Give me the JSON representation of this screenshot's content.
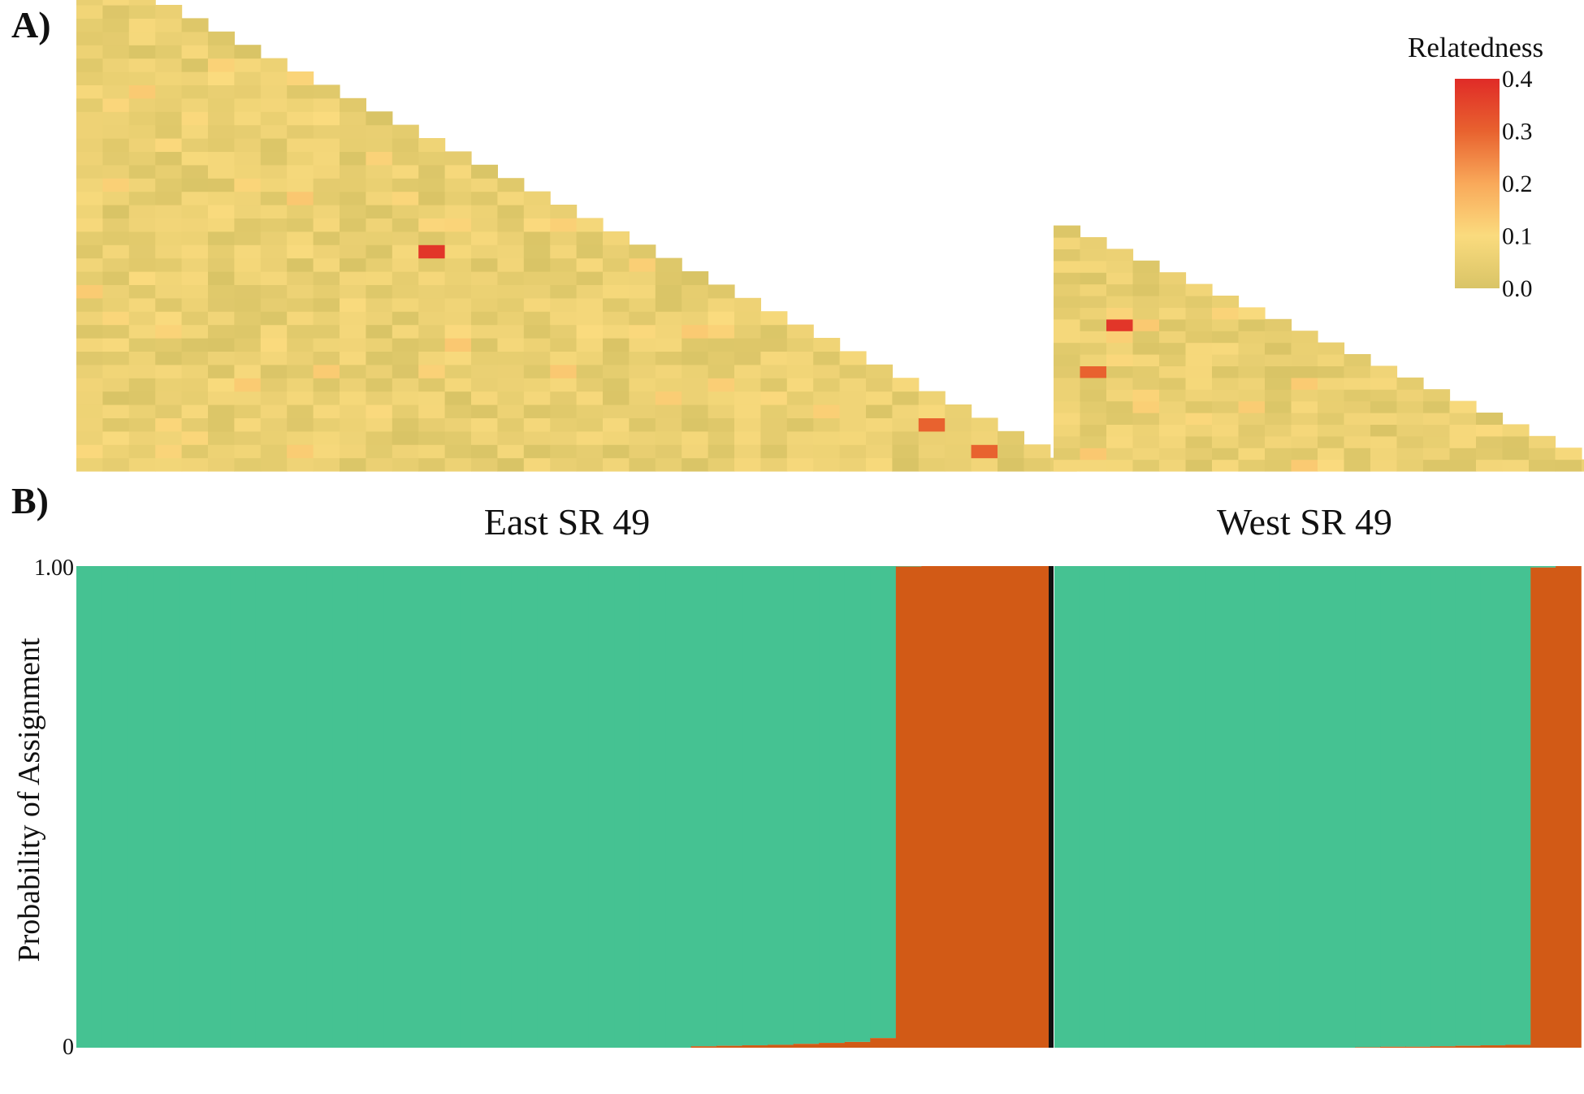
{
  "panel_labels": {
    "a": "A)",
    "b": "B)"
  },
  "chart_data": [
    {
      "type": "heatmap",
      "panel": "A)",
      "legend": {
        "title": "Relatedness",
        "ticks": [
          "0.0",
          "0.1",
          "0.2",
          "0.3",
          "0.4"
        ],
        "range": [
          0,
          0.4
        ],
        "colors": [
          "#d9c466",
          "#fadb7e",
          "#f9a95a",
          "#e8622f",
          "#e02b27"
        ]
      },
      "groups": [
        {
          "name": "East SR 49",
          "n_individuals": 38
        },
        {
          "name": "West SR 49",
          "n_individuals": 21
        }
      ],
      "grid": false,
      "highlight_pairs": [
        {
          "group": "East SR 49",
          "value": 0.38
        },
        {
          "group": "East SR 49",
          "value": 0.3
        },
        {
          "group": "East SR 49",
          "value": 0.3
        },
        {
          "group": "West SR 49",
          "value": 0.38
        },
        {
          "group": "West SR 49",
          "value": 0.3
        }
      ]
    },
    {
      "type": "bar",
      "stacked": true,
      "panel": "B)",
      "ylabel": "Probability of Assignment",
      "yticks": [
        "0",
        "1.00"
      ],
      "ylim": [
        0,
        1
      ],
      "groups": [
        "East SR 49",
        "West SR 49"
      ],
      "series_colors": {
        "cluster_1": "#45c292",
        "cluster_2": "#d25a16"
      },
      "east": {
        "n_individuals": 38,
        "cluster_2_probability": [
          0.0,
          0.0,
          0.0,
          0.0,
          0.0,
          0.0,
          0.0,
          0.0,
          0.0,
          0.0,
          0.0,
          0.0,
          0.0,
          0.0,
          0.0,
          0.0,
          0.0,
          0.0,
          0.0,
          0.0,
          0.0,
          0.0,
          0.0,
          0.0,
          0.003,
          0.004,
          0.005,
          0.006,
          0.008,
          0.01,
          0.012,
          0.02,
          0.999,
          1.0,
          1.0,
          1.0,
          1.0,
          1.0
        ]
      },
      "west": {
        "n_individuals": 21,
        "cluster_2_probability": [
          0.0,
          0.0,
          0.0,
          0.0,
          0.0,
          0.0,
          0.0,
          0.0,
          0.0,
          0.0,
          0.0,
          0.0,
          0.001,
          0.002,
          0.002,
          0.003,
          0.004,
          0.005,
          0.006,
          0.997,
          1.0
        ]
      }
    }
  ]
}
